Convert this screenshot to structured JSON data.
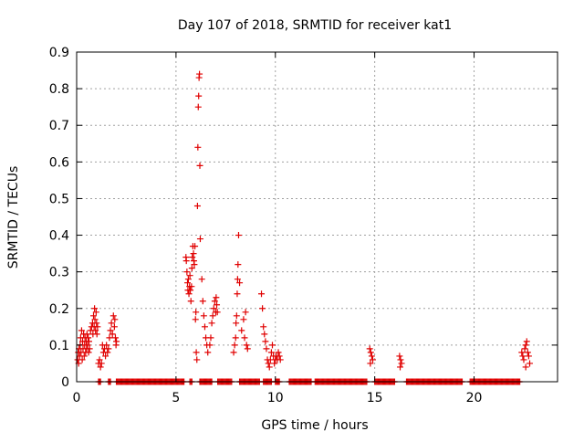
{
  "chart_data": {
    "type": "scatter",
    "title": "Day 107 of 2018, SRMTID for receiver kat1",
    "xlabel": "GPS time / hours",
    "ylabel": "SRMTID / TECUs",
    "xlim": [
      0,
      24.2
    ],
    "ylim": [
      0,
      0.9
    ],
    "xticks": [
      0,
      5,
      10,
      15,
      20
    ],
    "yticks": [
      0,
      0.1,
      0.2,
      0.3,
      0.4,
      0.5,
      0.6,
      0.7,
      0.8,
      0.9
    ],
    "grid": true,
    "marker": "+",
    "color": "#e00000",
    "series": [
      {
        "name": "SRMTID",
        "points": [
          [
            0.05,
            0.06
          ],
          [
            0.08,
            0.08
          ],
          [
            0.1,
            0.05
          ],
          [
            0.12,
            0.09
          ],
          [
            0.15,
            0.07
          ],
          [
            0.18,
            0.1
          ],
          [
            0.2,
            0.12
          ],
          [
            0.22,
            0.08
          ],
          [
            0.25,
            0.14
          ],
          [
            0.28,
            0.06
          ],
          [
            0.3,
            0.11
          ],
          [
            0.32,
            0.09
          ],
          [
            0.35,
            0.13
          ],
          [
            0.38,
            0.07
          ],
          [
            0.4,
            0.1
          ],
          [
            0.42,
            0.12
          ],
          [
            0.45,
            0.08
          ],
          [
            0.48,
            0.11
          ],
          [
            0.5,
            0.09
          ],
          [
            0.52,
            0.13
          ],
          [
            0.55,
            0.1
          ],
          [
            0.58,
            0.12
          ],
          [
            0.6,
            0.08
          ],
          [
            0.62,
            0.11
          ],
          [
            0.65,
            0.09
          ],
          [
            0.7,
            0.14
          ],
          [
            0.75,
            0.15
          ],
          [
            0.8,
            0.16
          ],
          [
            0.82,
            0.13
          ],
          [
            0.85,
            0.18
          ],
          [
            0.88,
            0.15
          ],
          [
            0.9,
            0.2
          ],
          [
            0.92,
            0.17
          ],
          [
            0.95,
            0.14
          ],
          [
            0.98,
            0.19
          ],
          [
            1.0,
            0.16
          ],
          [
            1.02,
            0.13
          ],
          [
            1.05,
            0.15
          ],
          [
            1.1,
            0.05
          ],
          [
            1.15,
            0.06
          ],
          [
            1.2,
            0.04
          ],
          [
            1.25,
            0.05
          ],
          [
            1.3,
            0.1
          ],
          [
            1.35,
            0.08
          ],
          [
            1.4,
            0.09
          ],
          [
            1.45,
            0.07
          ],
          [
            1.5,
            0.1
          ],
          [
            1.55,
            0.08
          ],
          [
            1.6,
            0.09
          ],
          [
            1.65,
            0.12
          ],
          [
            1.7,
            0.14
          ],
          [
            1.75,
            0.16
          ],
          [
            1.8,
            0.13
          ],
          [
            1.85,
            0.18
          ],
          [
            1.9,
            0.15
          ],
          [
            1.92,
            0.17
          ],
          [
            1.95,
            0.12
          ],
          [
            1.98,
            0.1
          ],
          [
            2.0,
            0.11
          ],
          [
            5.5,
            0.34
          ],
          [
            5.52,
            0.33
          ],
          [
            5.55,
            0.3
          ],
          [
            5.58,
            0.27
          ],
          [
            5.6,
            0.25
          ],
          [
            5.62,
            0.28
          ],
          [
            5.65,
            0.24
          ],
          [
            5.68,
            0.26
          ],
          [
            5.7,
            0.29
          ],
          [
            5.72,
            0.25
          ],
          [
            5.75,
            0.22
          ],
          [
            5.78,
            0.26
          ],
          [
            5.8,
            0.31
          ],
          [
            5.82,
            0.34
          ],
          [
            5.85,
            0.37
          ],
          [
            5.88,
            0.35
          ],
          [
            5.9,
            0.33
          ],
          [
            5.92,
            0.32
          ],
          [
            5.95,
            0.37
          ],
          [
            5.98,
            0.17
          ],
          [
            6.0,
            0.19
          ],
          [
            6.02,
            0.08
          ],
          [
            6.05,
            0.06
          ],
          [
            6.08,
            0.48
          ],
          [
            6.1,
            0.64
          ],
          [
            6.12,
            0.75
          ],
          [
            6.14,
            0.78
          ],
          [
            6.16,
            0.83
          ],
          [
            6.18,
            0.84
          ],
          [
            6.2,
            0.59
          ],
          [
            6.22,
            0.39
          ],
          [
            6.3,
            0.28
          ],
          [
            6.35,
            0.22
          ],
          [
            6.4,
            0.18
          ],
          [
            6.45,
            0.15
          ],
          [
            6.5,
            0.12
          ],
          [
            6.55,
            0.1
          ],
          [
            6.6,
            0.08
          ],
          [
            6.7,
            0.1
          ],
          [
            6.75,
            0.12
          ],
          [
            6.8,
            0.16
          ],
          [
            6.85,
            0.18
          ],
          [
            6.9,
            0.2
          ],
          [
            6.95,
            0.22
          ],
          [
            7.0,
            0.19
          ],
          [
            7.02,
            0.23
          ],
          [
            7.05,
            0.21
          ],
          [
            7.08,
            0.19
          ],
          [
            7.9,
            0.08
          ],
          [
            7.95,
            0.1
          ],
          [
            8.0,
            0.12
          ],
          [
            8.02,
            0.16
          ],
          [
            8.05,
            0.18
          ],
          [
            8.08,
            0.24
          ],
          [
            8.1,
            0.28
          ],
          [
            8.12,
            0.32
          ],
          [
            8.15,
            0.4
          ],
          [
            8.2,
            0.27
          ],
          [
            8.3,
            0.14
          ],
          [
            8.4,
            0.17
          ],
          [
            8.5,
            0.19
          ],
          [
            8.45,
            0.12
          ],
          [
            8.55,
            0.1
          ],
          [
            8.6,
            0.09
          ],
          [
            9.3,
            0.24
          ],
          [
            9.35,
            0.2
          ],
          [
            9.4,
            0.15
          ],
          [
            9.45,
            0.13
          ],
          [
            9.5,
            0.11
          ],
          [
            9.55,
            0.09
          ],
          [
            9.6,
            0.06
          ],
          [
            9.65,
            0.05
          ],
          [
            9.7,
            0.04
          ],
          [
            9.75,
            0.06
          ],
          [
            9.8,
            0.08
          ],
          [
            9.85,
            0.1
          ],
          [
            9.9,
            0.07
          ],
          [
            9.95,
            0.05
          ],
          [
            10.0,
            0.06
          ],
          [
            10.05,
            0.07
          ],
          [
            10.1,
            0.06
          ],
          [
            10.15,
            0.08
          ],
          [
            10.2,
            0.07
          ],
          [
            10.25,
            0.06
          ],
          [
            14.75,
            0.09
          ],
          [
            14.8,
            0.08
          ],
          [
            14.85,
            0.07
          ],
          [
            14.9,
            0.06
          ],
          [
            14.78,
            0.05
          ],
          [
            16.25,
            0.07
          ],
          [
            16.3,
            0.06
          ],
          [
            16.35,
            0.05
          ],
          [
            16.28,
            0.04
          ],
          [
            22.4,
            0.08
          ],
          [
            22.45,
            0.07
          ],
          [
            22.5,
            0.06
          ],
          [
            22.55,
            0.09
          ],
          [
            22.6,
            0.1
          ],
          [
            22.65,
            0.11
          ],
          [
            22.7,
            0.08
          ],
          [
            22.75,
            0.07
          ],
          [
            22.8,
            0.05
          ],
          [
            22.6,
            0.04
          ]
        ],
        "zero_runs": [
          [
            1.1,
            1.2
          ],
          [
            1.6,
            1.7
          ],
          [
            2.0,
            5.4
          ],
          [
            5.7,
            5.8
          ],
          [
            6.2,
            6.8
          ],
          [
            7.1,
            7.8
          ],
          [
            8.2,
            9.2
          ],
          [
            9.4,
            9.8
          ],
          [
            10.0,
            10.2
          ],
          [
            10.7,
            11.8
          ],
          [
            12.0,
            14.6
          ],
          [
            15.0,
            16.0
          ],
          [
            16.6,
            19.4
          ],
          [
            19.8,
            22.3
          ]
        ]
      }
    ]
  }
}
